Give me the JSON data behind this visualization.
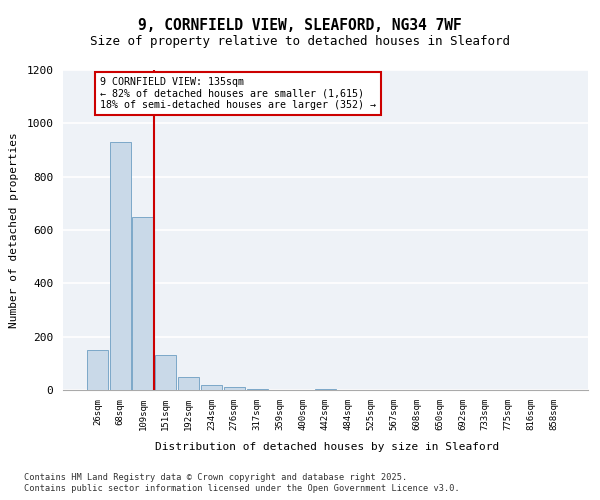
{
  "title_line1": "9, CORNFIELD VIEW, SLEAFORD, NG34 7WF",
  "title_line2": "Size of property relative to detached houses in Sleaford",
  "xlabel": "Distribution of detached houses by size in Sleaford",
  "ylabel": "Number of detached properties",
  "bin_labels": [
    "26sqm",
    "68sqm",
    "109sqm",
    "151sqm",
    "192sqm",
    "234sqm",
    "276sqm",
    "317sqm",
    "359sqm",
    "400sqm",
    "442sqm",
    "484sqm",
    "525sqm",
    "567sqm",
    "608sqm",
    "650sqm",
    "692sqm",
    "733sqm",
    "775sqm",
    "816sqm",
    "858sqm"
  ],
  "bar_heights": [
    150,
    930,
    650,
    130,
    50,
    20,
    10,
    5,
    0,
    0,
    5,
    0,
    0,
    0,
    0,
    0,
    0,
    0,
    0,
    0,
    0
  ],
  "bar_color": "#c9d9e8",
  "bar_edge_color": "#7ca8c8",
  "annotation_text": "9 CORNFIELD VIEW: 135sqm\n← 82% of detached houses are smaller (1,615)\n18% of semi-detached houses are larger (352) →",
  "annotation_box_color": "#ffffff",
  "annotation_box_edge": "#cc0000",
  "ylim": [
    0,
    1200
  ],
  "yticks": [
    0,
    200,
    400,
    600,
    800,
    1000,
    1200
  ],
  "background_color": "#eef2f7",
  "footer_line1": "Contains HM Land Registry data © Crown copyright and database right 2025.",
  "footer_line2": "Contains public sector information licensed under the Open Government Licence v3.0.",
  "red_line_color": "#cc0000",
  "grid_color": "#ffffff"
}
